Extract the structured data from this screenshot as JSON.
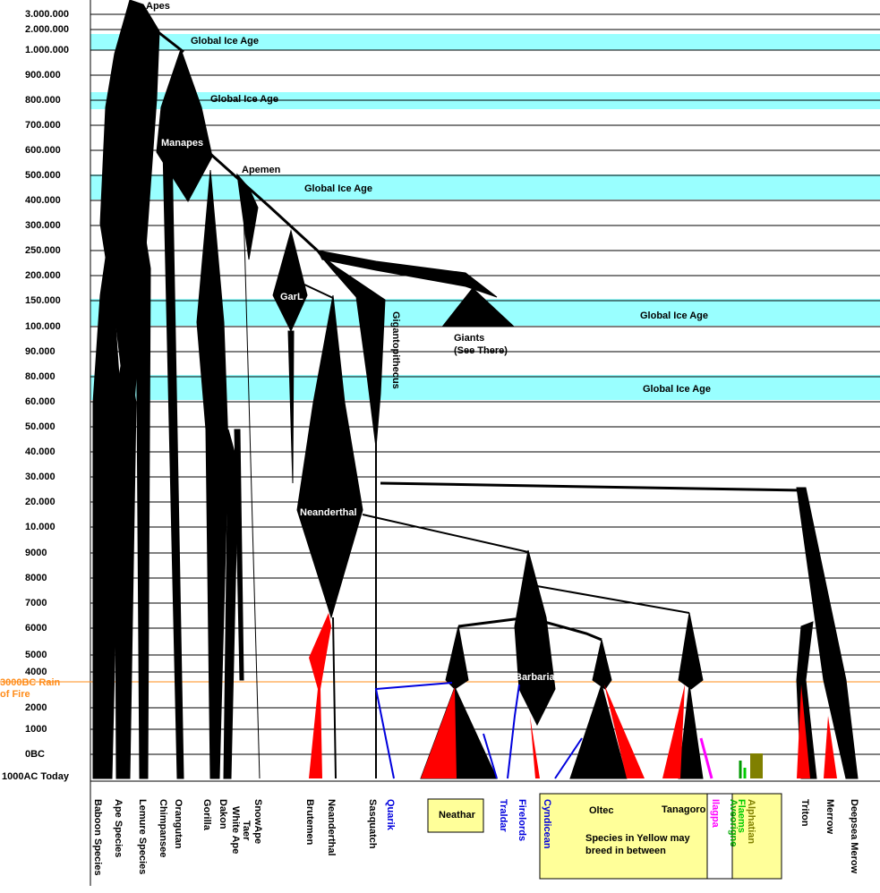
{
  "axis_labels": [
    "3.000.000",
    "2.000.000",
    "1.000.000",
    "900.000",
    "800.000",
    "700.000",
    "600.000",
    "500.000",
    "400.000",
    "300.000",
    "250.000",
    "200.000",
    "150.000",
    "100.000",
    "90.000",
    "80.000",
    "60.000",
    "50.000",
    "40.000",
    "30.000",
    "20.000",
    "10.000",
    "9000",
    "8000",
    "7000",
    "6000",
    "5000",
    "4000",
    "2000",
    "1000",
    "0BC",
    "1000AC Today"
  ],
  "rain_of_fire": [
    "3000BC Rain",
    "of Fire"
  ],
  "ice_ages": [
    "Global Ice Age",
    "Global Ice Age",
    "Global Ice Age",
    "Global Ice Age",
    "Global Ice Age"
  ],
  "branches": {
    "apes": "Apes",
    "manapes": "Manapes",
    "apemen": "Apemen",
    "garl": "GarL",
    "gigantopithecus": "Gigantopithecus",
    "giants": [
      "Giants",
      "(See There)"
    ],
    "neanderthal": "Neanderthal",
    "barbarian": "Barbarian"
  },
  "species": [
    "Baboon Species",
    "Ape Species",
    "Lemure Species",
    "Chimpansee",
    "Orangutan",
    "Gorilla",
    "Dakon",
    "White Ape",
    "Taer",
    "SnowApe",
    "Brutemen",
    "Neanderthal",
    "Sasquatch",
    "Quarik",
    "Traldar",
    "Firelords",
    "Cyndicean",
    "Ilagpa",
    "Aveorigne",
    "Flaems",
    "Alphatian",
    "Triton",
    "Merrow",
    "Deepsea Merow"
  ],
  "boxes": {
    "neathar": "Neathar",
    "oltec": "Oltec",
    "tanagoro": "Tanagoro",
    "note": [
      "Species in Yellow may",
      "breed in between"
    ]
  }
}
